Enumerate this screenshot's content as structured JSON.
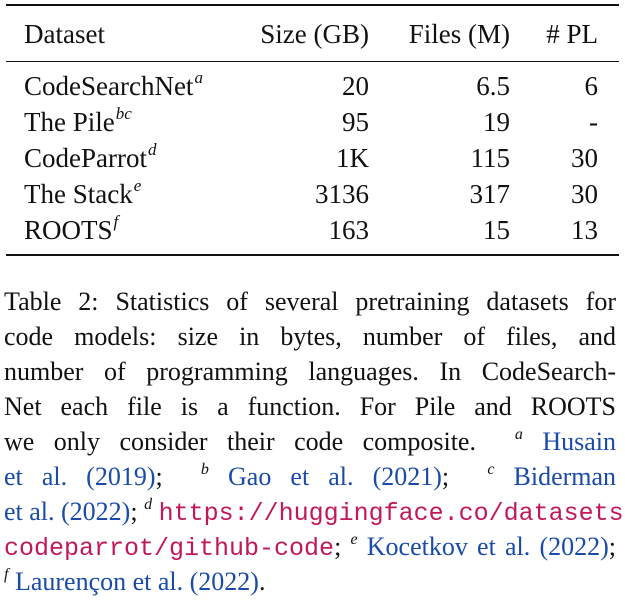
{
  "table": {
    "headers": {
      "dataset": "Dataset",
      "size": "Size (GB)",
      "files": "Files (M)",
      "pl": "# PL"
    },
    "rows": [
      {
        "name": "CodeSearchNet",
        "fn": "a",
        "size": "20",
        "files": "6.5",
        "pl": "6"
      },
      {
        "name": "The Pile",
        "fn": "bc",
        "size": "95",
        "files": "19",
        "pl": "-"
      },
      {
        "name": "CodeParrot",
        "fn": "d",
        "size": "1K",
        "files": "115",
        "pl": "30"
      },
      {
        "name": "The Stack",
        "fn": "e",
        "size": "3136",
        "files": "317",
        "pl": "30"
      },
      {
        "name": "ROOTS",
        "fn": "f",
        "size": "163",
        "files": "15",
        "pl": "13"
      }
    ]
  },
  "caption": {
    "l1": "Table 2:  Statistics of several pretraining datasets for",
    "l2": "code models:  size in bytes, number of files, and",
    "l3": "number of programming languages.  In CodeSearch-",
    "l4": "Net each file is a function.  For Pile and ROOTS",
    "l5_text": "we only consider their code composite.",
    "sup_a": "a",
    "cite_husain_1": "Husain",
    "cite_husain_2": "et al. (2019)",
    "sep1": ";",
    "sup_b": "b",
    "cite_gao": "Gao et al. (2021)",
    "sep2": ";",
    "sup_c": "c",
    "cite_biderman_1": "Biderman",
    "cite_biderman_2": "et al. (2022)",
    "sep3": ";",
    "sup_d": "d",
    "url_1": "https://huggingface.co/datasets/",
    "url_2": "codeparrot/github-code",
    "sep4": ";",
    "sup_e": "e",
    "cite_kocetkov": "Kocetkov et al. (2022)",
    "sep5": ";",
    "sup_f": "f",
    "cite_laurencon": "Laurençon et al. (2022)",
    "end": "."
  }
}
